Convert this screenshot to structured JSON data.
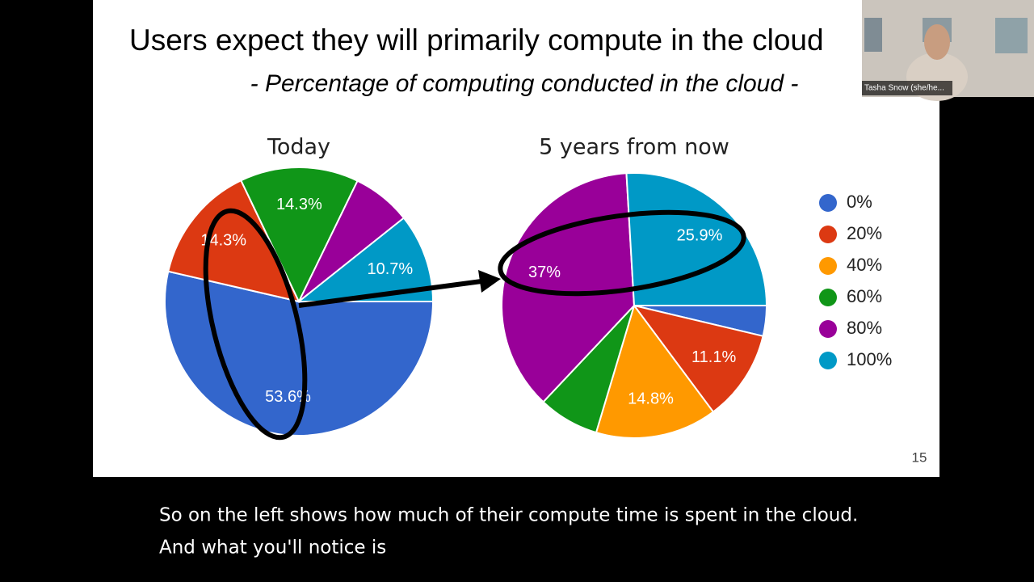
{
  "slide": {
    "title": "Users expect they will primarily compute in the cloud",
    "subtitle": "- Percentage of computing conducted in the cloud -",
    "page_number": "15"
  },
  "chart_data": [
    {
      "type": "pie",
      "title": "Today",
      "categories": [
        "0%",
        "20%",
        "40%",
        "60%",
        "80%",
        "100%"
      ],
      "colors": [
        "#3366cc",
        "#dc3912",
        "#ff9900",
        "#109618",
        "#990099",
        "#0099c6"
      ],
      "values": [
        53.6,
        14.3,
        0,
        14.3,
        7.1,
        10.7
      ],
      "value_labels": [
        "53.6%",
        "14.3%",
        null,
        "14.3%",
        null,
        "10.7%"
      ]
    },
    {
      "type": "pie",
      "title": "5 years from now",
      "categories": [
        "0%",
        "20%",
        "40%",
        "60%",
        "80%",
        "100%"
      ],
      "colors": [
        "#3366cc",
        "#dc3912",
        "#ff9900",
        "#109618",
        "#990099",
        "#0099c6"
      ],
      "values": [
        3.7,
        11.1,
        14.8,
        7.4,
        37,
        25.9
      ],
      "value_labels": [
        null,
        "11.1%",
        "14.8%",
        null,
        "37%",
        "25.9%"
      ]
    }
  ],
  "participant": {
    "name": "Tasha Snow (she/he..."
  },
  "captions": [
    "So on the left shows how much of their compute time is spent in the cloud.",
    "And what you'll notice is"
  ]
}
